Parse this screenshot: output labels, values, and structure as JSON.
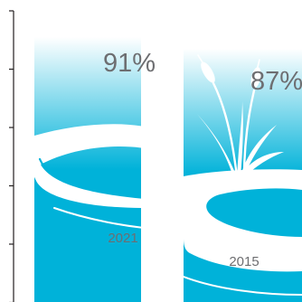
{
  "chart_data": {
    "type": "bar",
    "categories": [
      "2021",
      "2015"
    ],
    "values": [
      91,
      87
    ],
    "value_labels": [
      "91%",
      "87%"
    ],
    "ylim": [
      0,
      100
    ],
    "colors": {
      "bar_top": "#ffffff",
      "bar_bottom": "#00b2d9",
      "decor": "#ffffff",
      "axis": "#231f20",
      "label_text": "#6d6e71"
    },
    "decoration": "river-with-cattails"
  }
}
